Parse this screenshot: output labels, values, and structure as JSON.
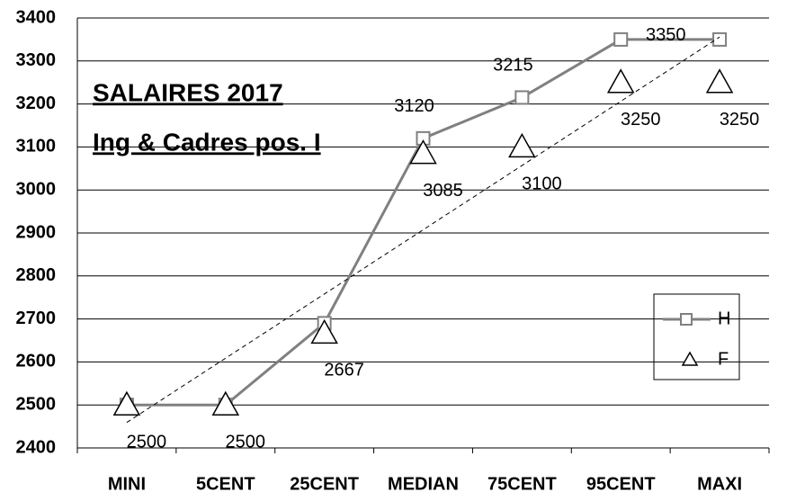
{
  "chart_data": {
    "type": "line",
    "title": "SALAIRES 2017",
    "subtitle": "Ing & Cadres pos. I",
    "categories": [
      "MINI",
      "5CENT",
      "25CENT",
      "MEDIAN",
      "75CENT",
      "95CENT",
      "MAXI"
    ],
    "series": [
      {
        "name": "H",
        "color": "#808080",
        "marker": "square",
        "line": true,
        "values": [
          2500,
          2500,
          2690,
          3120,
          3215,
          3350,
          3350
        ],
        "value_labels": [
          null,
          null,
          null,
          "3120",
          "3215",
          "3350",
          null
        ]
      },
      {
        "name": "F",
        "color": "#000000",
        "marker": "triangle",
        "line": false,
        "trendline": "linear",
        "values": [
          2500,
          2500,
          2667,
          3085,
          3100,
          3250,
          3250
        ],
        "value_labels": [
          "2500",
          "2500",
          "2667",
          "3085",
          "3100",
          "3250",
          "3250"
        ]
      }
    ],
    "ylim": [
      2400,
      3400
    ],
    "yticks": [
      2400,
      2500,
      2600,
      2700,
      2800,
      2900,
      3000,
      3100,
      3200,
      3300,
      3400
    ],
    "grid": true,
    "legend": "right"
  }
}
